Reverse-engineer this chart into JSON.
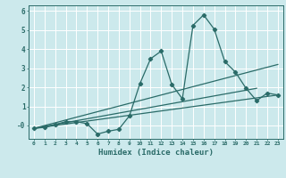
{
  "xlabel": "Humidex (Indice chaleur)",
  "xlim": [
    -0.5,
    23.5
  ],
  "ylim": [
    -0.7,
    6.3
  ],
  "yticks": [
    0,
    1,
    2,
    3,
    4,
    5,
    6
  ],
  "ytick_labels": [
    "-0",
    "1",
    "2",
    "3",
    "4",
    "5",
    "6"
  ],
  "xticks": [
    0,
    1,
    2,
    3,
    4,
    5,
    6,
    7,
    8,
    9,
    10,
    11,
    12,
    13,
    14,
    15,
    16,
    17,
    18,
    19,
    20,
    21,
    22,
    23
  ],
  "bg_color": "#cce9ec",
  "grid_color": "#ffffff",
  "line_color": "#2a6b68",
  "line_width": 0.9,
  "marker": "D",
  "marker_size": 2.2,
  "main_series_x": [
    0,
    1,
    2,
    3,
    4,
    5,
    6,
    7,
    8,
    9,
    10,
    11,
    12,
    13,
    14,
    15,
    16,
    17,
    18,
    19,
    20,
    21,
    22,
    23
  ],
  "main_series_y": [
    -0.15,
    -0.1,
    0.05,
    0.2,
    0.2,
    0.1,
    -0.45,
    -0.3,
    -0.2,
    0.5,
    2.2,
    3.5,
    3.9,
    2.15,
    1.4,
    5.25,
    5.8,
    5.05,
    3.35,
    2.8,
    1.95,
    1.3,
    1.7,
    1.6
  ],
  "trend_lines": [
    {
      "x": [
        0,
        23
      ],
      "y": [
        -0.15,
        1.6
      ]
    },
    {
      "x": [
        0,
        23
      ],
      "y": [
        -0.15,
        3.2
      ]
    },
    {
      "x": [
        0,
        21
      ],
      "y": [
        -0.15,
        1.95
      ]
    }
  ]
}
